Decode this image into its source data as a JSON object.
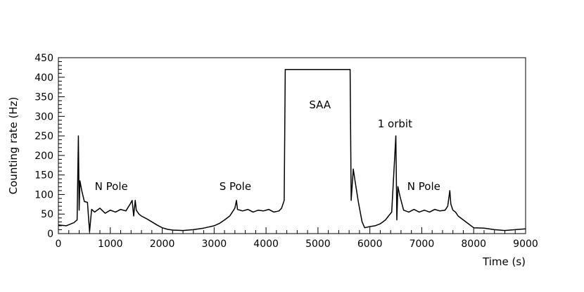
{
  "chart_data": {
    "type": "line",
    "title": "",
    "xlabel": "Time (s)",
    "ylabel": "Counting rate (Hz)",
    "xlim": [
      0,
      9000
    ],
    "ylim": [
      0,
      450
    ],
    "xticks": [
      0,
      1000,
      2000,
      3000,
      4000,
      5000,
      6000,
      7000,
      8000,
      9000
    ],
    "yticks": [
      0,
      50,
      100,
      150,
      200,
      250,
      300,
      350,
      400,
      450
    ],
    "grid": false,
    "legend": "none",
    "series": [
      {
        "color": "#000000",
        "points": [
          [
            0,
            22
          ],
          [
            150,
            20
          ],
          [
            300,
            28
          ],
          [
            360,
            35
          ],
          [
            385,
            250
          ],
          [
            400,
            60
          ],
          [
            415,
            135
          ],
          [
            450,
            110
          ],
          [
            500,
            82
          ],
          [
            560,
            80
          ],
          [
            600,
            5
          ],
          [
            640,
            62
          ],
          [
            700,
            55
          ],
          [
            800,
            65
          ],
          [
            900,
            52
          ],
          [
            1000,
            60
          ],
          [
            1100,
            55
          ],
          [
            1200,
            62
          ],
          [
            1300,
            58
          ],
          [
            1380,
            75
          ],
          [
            1420,
            85
          ],
          [
            1450,
            45
          ],
          [
            1480,
            85
          ],
          [
            1500,
            60
          ],
          [
            1550,
            50
          ],
          [
            1600,
            45
          ],
          [
            1700,
            38
          ],
          [
            1800,
            30
          ],
          [
            1900,
            22
          ],
          [
            2000,
            15
          ],
          [
            2100,
            11
          ],
          [
            2200,
            9
          ],
          [
            2400,
            8
          ],
          [
            2600,
            10
          ],
          [
            2800,
            14
          ],
          [
            3000,
            20
          ],
          [
            3100,
            26
          ],
          [
            3200,
            35
          ],
          [
            3300,
            45
          ],
          [
            3350,
            55
          ],
          [
            3400,
            65
          ],
          [
            3430,
            85
          ],
          [
            3450,
            62
          ],
          [
            3550,
            58
          ],
          [
            3650,
            62
          ],
          [
            3750,
            55
          ],
          [
            3850,
            60
          ],
          [
            3950,
            58
          ],
          [
            4050,
            62
          ],
          [
            4150,
            55
          ],
          [
            4250,
            58
          ],
          [
            4300,
            65
          ],
          [
            4350,
            85
          ],
          [
            4370,
            420
          ],
          [
            5620,
            420
          ],
          [
            5640,
            85
          ],
          [
            5680,
            165
          ],
          [
            5720,
            130
          ],
          [
            5780,
            80
          ],
          [
            5850,
            30
          ],
          [
            5900,
            15
          ],
          [
            6000,
            18
          ],
          [
            6100,
            20
          ],
          [
            6200,
            25
          ],
          [
            6300,
            35
          ],
          [
            6360,
            45
          ],
          [
            6420,
            55
          ],
          [
            6500,
            250
          ],
          [
            6520,
            35
          ],
          [
            6540,
            120
          ],
          [
            6580,
            95
          ],
          [
            6650,
            60
          ],
          [
            6750,
            55
          ],
          [
            6850,
            62
          ],
          [
            6950,
            55
          ],
          [
            7050,
            60
          ],
          [
            7150,
            55
          ],
          [
            7250,
            62
          ],
          [
            7350,
            58
          ],
          [
            7450,
            60
          ],
          [
            7500,
            70
          ],
          [
            7540,
            110
          ],
          [
            7560,
            75
          ],
          [
            7600,
            60
          ],
          [
            7650,
            55
          ],
          [
            7700,
            45
          ],
          [
            7800,
            35
          ],
          [
            7900,
            25
          ],
          [
            8000,
            15
          ],
          [
            8200,
            14
          ],
          [
            8400,
            10
          ],
          [
            8600,
            8
          ],
          [
            8800,
            10
          ],
          [
            9000,
            12
          ]
        ]
      }
    ],
    "annotations": [
      {
        "text": "N Pole",
        "x": 700,
        "y": 112
      },
      {
        "text": "S Pole",
        "x": 3100,
        "y": 112
      },
      {
        "text": "SAA",
        "x": 4830,
        "y": 320
      },
      {
        "text": "1 orbit",
        "x": 6150,
        "y": 272
      },
      {
        "text": "N Pole",
        "x": 6720,
        "y": 112
      }
    ]
  }
}
